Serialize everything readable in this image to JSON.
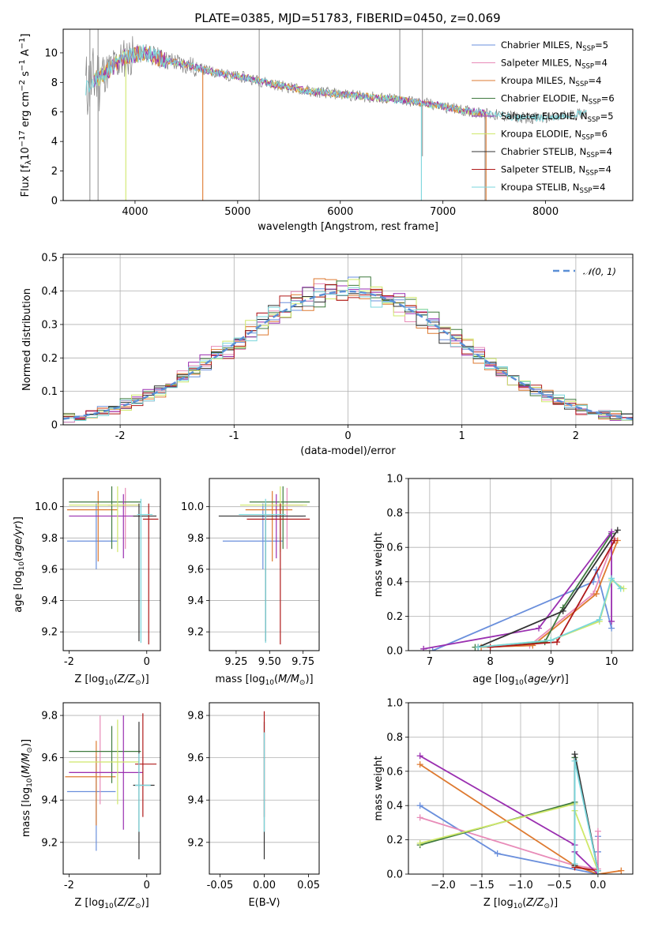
{
  "page_title": "PLATE=0385, MJD=51783, FIBERID=0450, z=0.069",
  "colors": {
    "chabrier_miles": "#6a8fdc",
    "salpeter_miles": "#e88bb8",
    "kroupa_miles": "#de7a30",
    "chabrier_elodie": "#3f7a3f",
    "salpeter_elodie": "#9a2fb0",
    "kroupa_elodie": "#cfe86a",
    "chabrier_stelib": "#333333",
    "salpeter_stelib": "#b01a1a",
    "kroupa_stelib": "#7ad6dc",
    "data": "#808080",
    "gauss": "#5b8fd6"
  },
  "chart_data": [
    {
      "id": "spectrum",
      "type": "line",
      "title": "PLATE=0385, MJD=51783, FIBERID=0450, z=0.069",
      "xlabel": "wavelength [Angstrom, rest frame]",
      "ylabel": "Flux [f_λ10^-17 erg cm^-2 s^-1 A^-1]",
      "xlim": [
        3300,
        8850
      ],
      "ylim": [
        0,
        11.6
      ],
      "xticks": [
        4000,
        5000,
        6000,
        7000,
        8000
      ],
      "yticks": [
        0,
        2,
        4,
        6,
        8,
        10
      ],
      "legend_position": "top-right",
      "continuum": {
        "x": [
          3500,
          3700,
          3900,
          4100,
          4300,
          4500,
          4700,
          4900,
          5100,
          5400,
          5700,
          6000,
          6300,
          6600,
          6900,
          7200,
          7500,
          7800,
          8100,
          8400
        ],
        "y": [
          7.6,
          8.6,
          9.7,
          10.0,
          9.5,
          9.2,
          8.8,
          8.5,
          8.3,
          7.8,
          7.4,
          7.2,
          7.0,
          6.8,
          6.5,
          6.1,
          5.8,
          5.6,
          5.6,
          6.0
        ]
      },
      "series": [
        {
          "name": "Chabrier MILES, N_SSP=5",
          "label_main": "Chabrier MILES, N",
          "label_sub": "SSP",
          "label_tail": "=5",
          "color_key": "chabrier_miles"
        },
        {
          "name": "Salpeter MILES, N_SSP=4",
          "label_main": "Salpeter MILES, N",
          "label_sub": "SSP",
          "label_tail": "=4",
          "color_key": "salpeter_miles"
        },
        {
          "name": "Kroupa MILES, N_SSP=4",
          "label_main": "Kroupa MILES, N",
          "label_sub": "SSP",
          "label_tail": "=4",
          "color_key": "kroupa_miles"
        },
        {
          "name": "Chabrier ELODIE, N_SSP=6",
          "label_main": "Chabrier ELODIE, N",
          "label_sub": "SSP",
          "label_tail": "=6",
          "color_key": "chabrier_elodie"
        },
        {
          "name": "Salpeter ELODIE, N_SSP=5",
          "label_main": "Salpeter ELODIE, N",
          "label_sub": "SSP",
          "label_tail": "=5",
          "color_key": "salpeter_elodie"
        },
        {
          "name": "Kroupa ELODIE, N_SSP=6",
          "label_main": "Kroupa ELODIE, N",
          "label_sub": "SSP",
          "label_tail": "=6",
          "color_key": "kroupa_elodie"
        },
        {
          "name": "Chabrier STELIB, N_SSP=4",
          "label_main": "Chabrier STELIB, N",
          "label_sub": "SSP",
          "label_tail": "=4",
          "color_key": "chabrier_stelib"
        },
        {
          "name": "Salpeter STELIB, N_SSP=4",
          "label_main": "Salpeter STELIB, N",
          "label_sub": "SSP",
          "label_tail": "=4",
          "color_key": "salpeter_stelib"
        },
        {
          "name": "Kroupa STELIB, N_SSP=4",
          "label_main": "Kroupa STELIB, N",
          "label_sub": "SSP",
          "label_tail": "=4",
          "color_key": "kroupa_stelib"
        }
      ]
    },
    {
      "id": "residuals",
      "type": "histogram",
      "xlabel": "(data-model)/error",
      "ylabel": "Normed distribution",
      "xlim": [
        -2.5,
        2.5
      ],
      "ylim": [
        0,
        0.51
      ],
      "xticks": [
        -2,
        -1,
        0,
        1,
        2
      ],
      "yticks": [
        0.0,
        0.1,
        0.2,
        0.3,
        0.4,
        0.5
      ],
      "grid": true,
      "legend_position": "top-right",
      "legend_label": "𝒩(0, 1)",
      "bin_width": 0.1
    },
    {
      "id": "age_vs_Z",
      "type": "errorbar",
      "xlabel": "Z [log10(Z/Z⊙)]",
      "ylabel": "age  [log10(age/yr)]",
      "xlim": [
        -2.15,
        0.35
      ],
      "ylim": [
        9.08,
        10.18
      ],
      "xticks": [
        -2,
        0
      ],
      "yticks": [
        9.2,
        9.4,
        9.6,
        9.8,
        10.0
      ],
      "points": [
        {
          "color_key": "chabrier_miles",
          "x": -1.3,
          "xerr": [
            0.75,
            0.55
          ],
          "y": 9.78,
          "yerr": [
            0.18,
            0.24
          ]
        },
        {
          "color_key": "salpeter_miles",
          "x": -0.55,
          "xerr": [
            0.45,
            0.35
          ],
          "y": 10.01,
          "yerr": [
            0.28,
            0.11
          ]
        },
        {
          "color_key": "kroupa_miles",
          "x": -1.25,
          "xerr": [
            0.8,
            0.5
          ],
          "y": 9.98,
          "yerr": [
            0.33,
            0.12
          ]
        },
        {
          "color_key": "chabrier_elodie",
          "x": -0.9,
          "xerr": [
            1.1,
            0.75
          ],
          "y": 10.03,
          "yerr": [
            0.3,
            0.1
          ]
        },
        {
          "color_key": "salpeter_elodie",
          "x": -0.6,
          "xerr": [
            1.4,
            0.5
          ],
          "y": 9.94,
          "yerr": [
            0.27,
            0.14
          ]
        },
        {
          "color_key": "kroupa_elodie",
          "x": -0.75,
          "xerr": [
            1.25,
            0.55
          ],
          "y": 10.01,
          "yerr": [
            0.3,
            0.12
          ]
        },
        {
          "color_key": "chabrier_stelib",
          "x": -0.2,
          "xerr": [
            0.15,
            0.45
          ],
          "y": 9.94,
          "yerr": [
            0.8,
            0.08
          ]
        },
        {
          "color_key": "salpeter_stelib",
          "x": 0.05,
          "xerr": [
            0.15,
            0.25
          ],
          "y": 9.92,
          "yerr": [
            0.8,
            0.1
          ]
        },
        {
          "color_key": "kroupa_stelib",
          "x": -0.15,
          "xerr": [
            0.1,
            0.3
          ],
          "y": 9.95,
          "yerr": [
            0.82,
            0.1
          ]
        }
      ]
    },
    {
      "id": "age_vs_mass",
      "type": "errorbar",
      "xlabel": "mass [log10(M/M⊙)]",
      "ylabel": "",
      "xlim": [
        9.05,
        9.87
      ],
      "ylim": [
        9.08,
        10.18
      ],
      "xticks": [
        9.25,
        9.5,
        9.75
      ],
      "xtick_labels": [
        "9.25",
        "9.50",
        "9.75"
      ],
      "yticks": [
        9.2,
        9.4,
        9.6,
        9.8,
        10.0
      ],
      "points": [
        {
          "color_key": "chabrier_miles",
          "x": 9.45,
          "xerr": [
            0.3,
            0.15
          ],
          "y": 9.78,
          "yerr": [
            0.18,
            0.24
          ]
        },
        {
          "color_key": "salpeter_miles",
          "x": 9.63,
          "xerr": [
            0.15,
            0.12
          ],
          "y": 10.01,
          "yerr": [
            0.28,
            0.11
          ]
        },
        {
          "color_key": "kroupa_miles",
          "x": 9.52,
          "xerr": [
            0.2,
            0.15
          ],
          "y": 9.98,
          "yerr": [
            0.33,
            0.12
          ]
        },
        {
          "color_key": "chabrier_elodie",
          "x": 9.6,
          "xerr": [
            0.25,
            0.2
          ],
          "y": 10.03,
          "yerr": [
            0.3,
            0.1
          ]
        },
        {
          "color_key": "salpeter_elodie",
          "x": 9.55,
          "xerr": [
            0.25,
            0.2
          ],
          "y": 9.94,
          "yerr": [
            0.27,
            0.14
          ]
        },
        {
          "color_key": "kroupa_elodie",
          "x": 9.58,
          "xerr": [
            0.3,
            0.2
          ],
          "y": 10.01,
          "yerr": [
            0.3,
            0.12
          ]
        },
        {
          "color_key": "chabrier_stelib",
          "x": 9.47,
          "xerr": [
            0.35,
            0.3
          ],
          "y": 9.94,
          "yerr": [
            0.8,
            0.08
          ]
        },
        {
          "color_key": "salpeter_stelib",
          "x": 9.58,
          "xerr": [
            0.25,
            0.22
          ],
          "y": 9.92,
          "yerr": [
            0.8,
            0.1
          ]
        },
        {
          "color_key": "kroupa_stelib",
          "x": 9.47,
          "xerr": [
            0.2,
            0.15
          ],
          "y": 9.95,
          "yerr": [
            0.82,
            0.1
          ]
        }
      ]
    },
    {
      "id": "weight_vs_age",
      "type": "line",
      "xlabel": "age  [log10(age/yr)]",
      "ylabel": "mass weight",
      "xlim": [
        6.65,
        10.35
      ],
      "ylim": [
        0,
        1.0
      ],
      "xticks": [
        7,
        8,
        9,
        10
      ],
      "yticks": [
        0.0,
        0.2,
        0.4,
        0.6,
        0.8,
        1.0
      ],
      "grid": true,
      "series": [
        {
          "color_key": "chabrier_miles",
          "x": [
            7.05,
            9.7,
            9.75,
            10.0
          ],
          "y": [
            0.0,
            0.4,
            0.47,
            0.13
          ]
        },
        {
          "color_key": "salpeter_miles",
          "x": [
            7.8,
            8.65,
            9.7,
            10.05
          ],
          "y": [
            0.02,
            0.03,
            0.33,
            0.65
          ]
        },
        {
          "color_key": "kroupa_miles",
          "x": [
            7.85,
            8.7,
            9.75,
            10.1
          ],
          "y": [
            0.02,
            0.03,
            0.33,
            0.64
          ]
        },
        {
          "color_key": "chabrier_elodie",
          "x": [
            7.75,
            8.9,
            9.2,
            10.0
          ],
          "y": [
            0.02,
            0.05,
            0.25,
            0.68
          ]
        },
        {
          "color_key": "salpeter_elodie",
          "x": [
            6.9,
            8.8,
            10.0,
            10.0
          ],
          "y": [
            0.01,
            0.13,
            0.69,
            0.17
          ]
        },
        {
          "color_key": "kroupa_elodie",
          "x": [
            7.8,
            9.0,
            9.8,
            10.0,
            10.2
          ],
          "y": [
            0.02,
            0.06,
            0.17,
            0.41,
            0.36
          ]
        },
        {
          "color_key": "chabrier_stelib",
          "x": [
            7.8,
            9.2,
            10.1
          ],
          "y": [
            0.02,
            0.23,
            0.7
          ]
        },
        {
          "color_key": "salpeter_stelib",
          "x": [
            8.0,
            9.1,
            10.05
          ],
          "y": [
            0.02,
            0.05,
            0.64
          ]
        },
        {
          "color_key": "kroupa_stelib",
          "x": [
            7.8,
            9.0,
            9.8,
            10.0,
            10.15
          ],
          "y": [
            0.02,
            0.06,
            0.18,
            0.42,
            0.36
          ]
        }
      ]
    },
    {
      "id": "mass_vs_Z",
      "type": "errorbar",
      "xlabel": "Z [log10(Z/Z⊙)]",
      "ylabel": "mass [log10(M/M⊙)]",
      "xlim": [
        -2.15,
        0.35
      ],
      "ylim": [
        9.05,
        9.86
      ],
      "xticks": [
        -2,
        0
      ],
      "yticks": [
        9.2,
        9.4,
        9.6,
        9.8
      ],
      "points": [
        {
          "color_key": "chabrier_miles",
          "x": -1.3,
          "xerr": [
            0.75,
            0.5
          ],
          "y": 9.44,
          "yerr": [
            0.28,
            0.17
          ]
        },
        {
          "color_key": "salpeter_miles",
          "x": -1.2,
          "xerr": [
            0.8,
            0.5
          ],
          "y": 9.53,
          "yerr": [
            0.15,
            0.27
          ]
        },
        {
          "color_key": "kroupa_miles",
          "x": -1.3,
          "xerr": [
            0.8,
            0.5
          ],
          "y": 9.51,
          "yerr": [
            0.23,
            0.17
          ]
        },
        {
          "color_key": "chabrier_elodie",
          "x": -0.9,
          "xerr": [
            1.1,
            0.75
          ],
          "y": 9.63,
          "yerr": [
            0.15,
            0.12
          ]
        },
        {
          "color_key": "salpeter_elodie",
          "x": -0.6,
          "xerr": [
            1.4,
            0.5
          ],
          "y": 9.53,
          "yerr": [
            0.27,
            0.27
          ]
        },
        {
          "color_key": "kroupa_elodie",
          "x": -0.75,
          "xerr": [
            1.25,
            0.55
          ],
          "y": 9.58,
          "yerr": [
            0.2,
            0.2
          ]
        },
        {
          "color_key": "chabrier_stelib",
          "x": -0.2,
          "xerr": [
            0.15,
            0.4
          ],
          "y": 9.47,
          "yerr": [
            0.35,
            0.3
          ]
        },
        {
          "color_key": "salpeter_stelib",
          "x": -0.1,
          "xerr": [
            0.2,
            0.35
          ],
          "y": 9.57,
          "yerr": [
            0.25,
            0.24
          ]
        },
        {
          "color_key": "kroupa_stelib",
          "x": -0.2,
          "xerr": [
            0.1,
            0.3
          ],
          "y": 9.47,
          "yerr": [
            0.22,
            0.15
          ]
        }
      ]
    },
    {
      "id": "mass_vs_ebv",
      "type": "errorbar",
      "xlabel": "E(B-V)",
      "ylabel": "",
      "xlim": [
        -0.062,
        0.062
      ],
      "ylim": [
        9.05,
        9.86
      ],
      "xticks": [
        -0.05,
        0.0,
        0.05
      ],
      "xtick_labels": [
        "-0.05",
        "0.00",
        "0.05"
      ],
      "yticks": [
        9.2,
        9.4,
        9.6,
        9.8
      ],
      "points": [
        {
          "color_key": "chabrier_stelib",
          "x": 0.0,
          "xerr": [
            0,
            0
          ],
          "y": 9.47,
          "yerr": [
            0.35,
            0.3
          ]
        },
        {
          "color_key": "salpeter_stelib",
          "x": 0.0,
          "xerr": [
            0,
            0
          ],
          "y": 9.57,
          "yerr": [
            0.25,
            0.25
          ]
        },
        {
          "color_key": "kroupa_stelib",
          "x": 0.0,
          "xerr": [
            0,
            0
          ],
          "y": 9.47,
          "yerr": [
            0.22,
            0.25
          ]
        }
      ]
    },
    {
      "id": "weight_vs_Z",
      "type": "line",
      "xlabel": "Z [log10(Z/Z⊙)]",
      "ylabel": "mass weight",
      "xlim": [
        -2.45,
        0.45
      ],
      "ylim": [
        0,
        1.0
      ],
      "xticks": [
        -2.0,
        -1.5,
        -1.0,
        -0.5,
        0.0
      ],
      "xtick_labels": [
        "−2.0",
        "−1.5",
        "−1.0",
        "−0.5",
        "0.0"
      ],
      "yticks": [
        0.0,
        0.2,
        0.4,
        0.6,
        0.8,
        1.0
      ],
      "grid": true,
      "series": [
        {
          "color_key": "chabrier_miles",
          "x": [
            -2.3,
            -1.3,
            0.0,
            0.0,
            0.0
          ],
          "y": [
            0.4,
            0.12,
            0.0,
            0.22,
            0.13
          ]
        },
        {
          "color_key": "salpeter_miles",
          "x": [
            -2.3,
            -0.3,
            0.0,
            0.0
          ],
          "y": [
            0.33,
            0.05,
            0.03,
            0.25
          ]
        },
        {
          "color_key": "kroupa_miles",
          "x": [
            -2.3,
            -0.3,
            0.0,
            0.3
          ],
          "y": [
            0.64,
            0.05,
            0.0,
            0.02
          ]
        },
        {
          "color_key": "chabrier_elodie",
          "x": [
            -2.3,
            -0.3,
            -0.3,
            0.0
          ],
          "y": [
            0.17,
            0.42,
            0.68,
            0.02
          ]
        },
        {
          "color_key": "salpeter_elodie",
          "x": [
            -2.3,
            -0.3,
            -0.3,
            0.0
          ],
          "y": [
            0.69,
            0.17,
            0.13,
            0.0
          ]
        },
        {
          "color_key": "kroupa_elodie",
          "x": [
            -2.3,
            -0.3,
            -0.3,
            0.0
          ],
          "y": [
            0.18,
            0.41,
            0.37,
            0.02
          ]
        },
        {
          "color_key": "chabrier_stelib",
          "x": [
            -0.3,
            -0.3,
            0.0
          ],
          "y": [
            0.05,
            0.7,
            0.02
          ]
        },
        {
          "color_key": "salpeter_stelib",
          "x": [
            -0.3,
            0.0
          ],
          "y": [
            0.04,
            0.02
          ]
        },
        {
          "color_key": "kroupa_stelib",
          "x": [
            -0.3,
            -0.3,
            0.0,
            0.0
          ],
          "y": [
            0.06,
            0.66,
            0.02,
            0.0
          ]
        }
      ]
    }
  ]
}
